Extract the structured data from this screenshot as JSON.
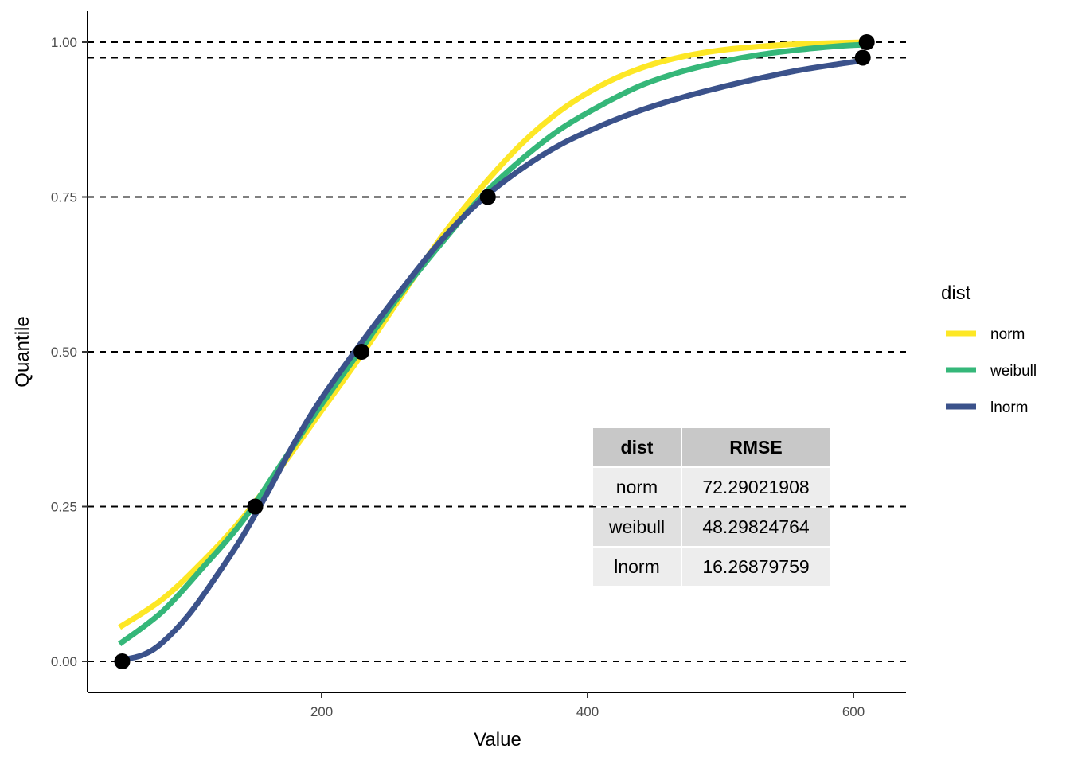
{
  "chart_data": {
    "type": "line",
    "xlabel": "Value",
    "ylabel": "Quantile",
    "xlim": [
      20,
      640
    ],
    "ylim": [
      -0.05,
      1.05
    ],
    "x_ticks": [
      200,
      400,
      600
    ],
    "y_ticks": [
      0.0,
      0.25,
      0.5,
      0.75,
      1.0
    ],
    "x_tick_labels": [
      "200",
      "400",
      "600"
    ],
    "y_tick_labels": [
      "0.00",
      "0.25",
      "0.50",
      "0.75",
      "1.00"
    ],
    "hlines": [
      0.0,
      0.25,
      0.5,
      0.75,
      0.975,
      1.0
    ],
    "grid": false,
    "legend": {
      "title": "dist",
      "placement": "right"
    },
    "series": [
      {
        "name": "norm",
        "color": "#FDE725",
        "x": [
          48,
          80,
          110,
          140,
          170,
          200,
          230,
          260,
          290,
          320,
          350,
          380,
          410,
          440,
          470,
          500,
          530,
          560,
          590,
          610
        ],
        "y": [
          0.055,
          0.1,
          0.16,
          0.23,
          0.315,
          0.405,
          0.495,
          0.59,
          0.685,
          0.765,
          0.835,
          0.89,
          0.93,
          0.958,
          0.976,
          0.987,
          0.993,
          0.997,
          0.999,
          1.0
        ]
      },
      {
        "name": "weibull",
        "color": "#35B779",
        "x": [
          48,
          80,
          110,
          140,
          170,
          200,
          230,
          260,
          290,
          320,
          350,
          380,
          410,
          440,
          470,
          500,
          530,
          560,
          590,
          610
        ],
        "y": [
          0.028,
          0.08,
          0.15,
          0.225,
          0.32,
          0.415,
          0.505,
          0.595,
          0.675,
          0.75,
          0.81,
          0.86,
          0.898,
          0.93,
          0.952,
          0.968,
          0.98,
          0.988,
          0.994,
          0.996
        ]
      },
      {
        "name": "lnorm",
        "color": "#3B528B",
        "x": [
          48,
          65,
          80,
          100,
          120,
          140,
          160,
          180,
          200,
          230,
          260,
          290,
          320,
          350,
          380,
          410,
          440,
          470,
          500,
          530,
          560,
          590,
          607
        ],
        "y": [
          0.002,
          0.01,
          0.03,
          0.075,
          0.135,
          0.2,
          0.275,
          0.355,
          0.425,
          0.515,
          0.6,
          0.68,
          0.745,
          0.795,
          0.835,
          0.865,
          0.89,
          0.91,
          0.927,
          0.942,
          0.955,
          0.965,
          0.97
        ]
      }
    ],
    "points": [
      {
        "x": 50,
        "y": 0.0
      },
      {
        "x": 150,
        "y": 0.25
      },
      {
        "x": 230,
        "y": 0.5
      },
      {
        "x": 325,
        "y": 0.75
      },
      {
        "x": 607,
        "y": 0.975
      },
      {
        "x": 610,
        "y": 1.0
      }
    ],
    "table": {
      "headers": [
        "dist",
        "RMSE"
      ],
      "rows": [
        [
          "norm",
          "72.29021908"
        ],
        [
          "weibull",
          "48.29824764"
        ],
        [
          "lnorm",
          "16.26879759"
        ]
      ],
      "header_bg": "#c8c8c8",
      "row_bg": [
        "#ededed",
        "#e0e0e0",
        "#ededed"
      ]
    }
  }
}
